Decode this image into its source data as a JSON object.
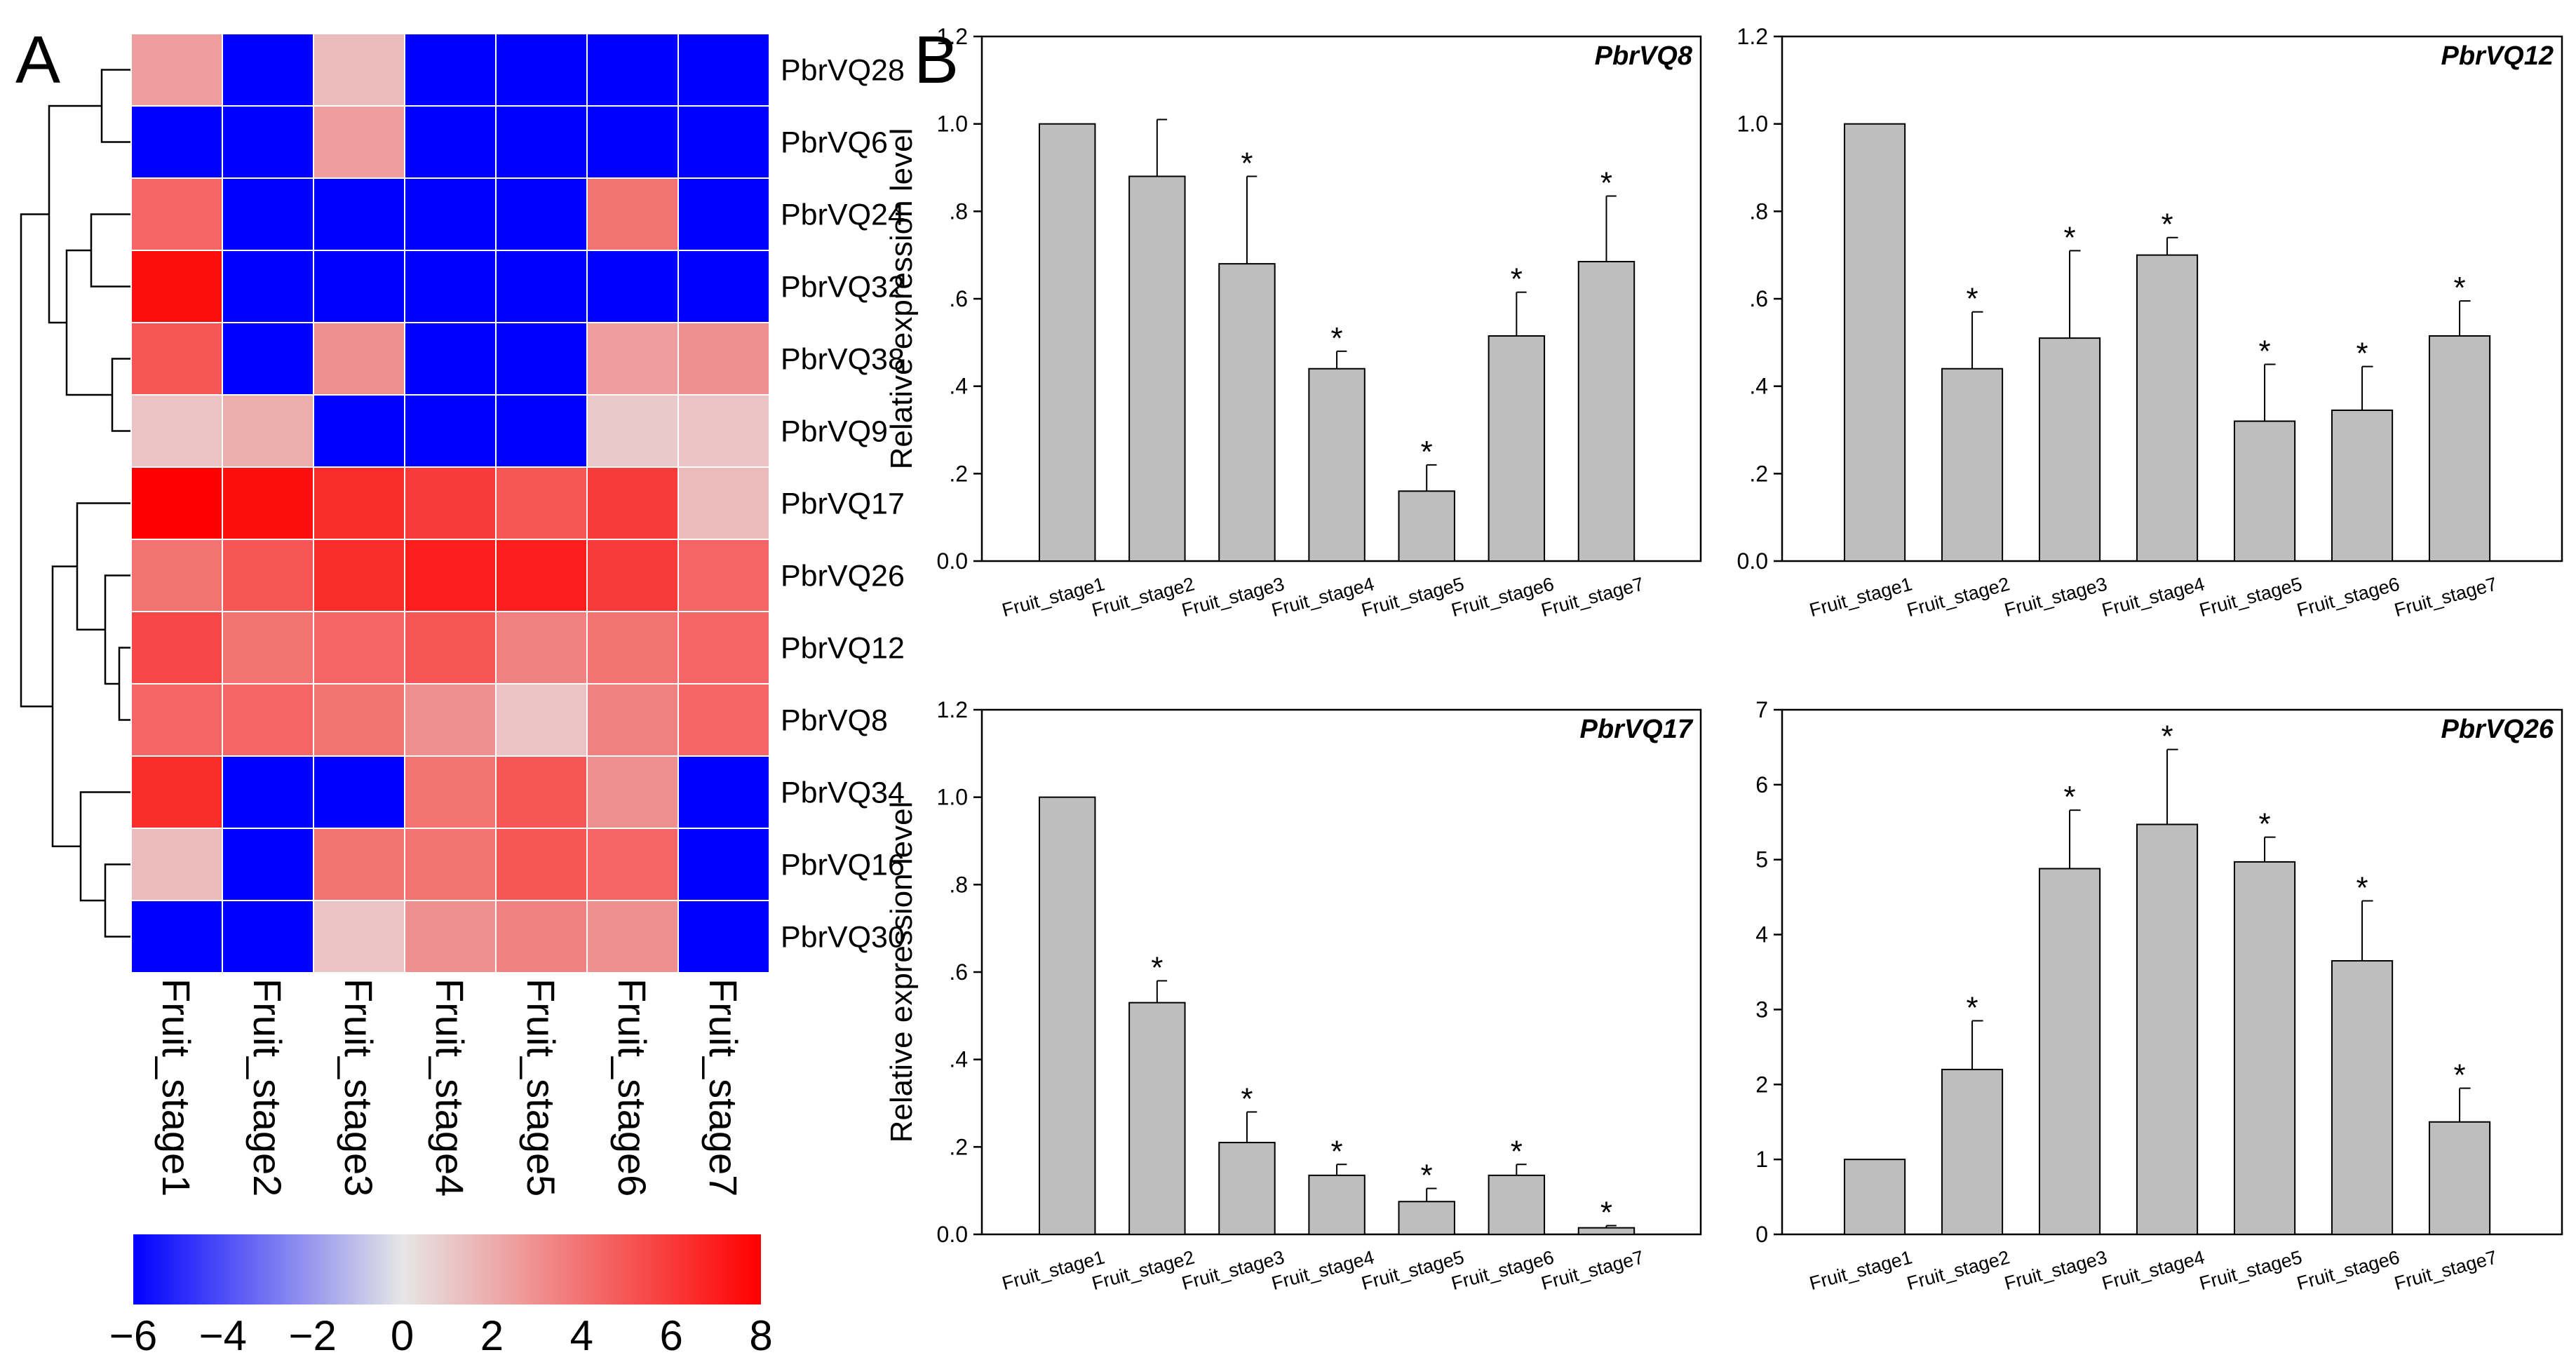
{
  "panel_labels": {
    "a": "A",
    "b": "B"
  },
  "heatmap": {
    "genes": [
      "PbrVQ28",
      "PbrVQ6",
      "PbrVQ24",
      "PbrVQ32",
      "PbrVQ38",
      "PbrVQ9",
      "PbrVQ17",
      "PbrVQ26",
      "PbrVQ12",
      "PbrVQ8",
      "PbrVQ34",
      "PbrVQ16",
      "PbrVQ30"
    ],
    "stages": [
      "Fruit_stage1",
      "Fruit_stage2",
      "Fruit_stage3",
      "Fruit_stage4",
      "Fruit_stage5",
      "Fruit_stage6",
      "Fruit_stage7"
    ],
    "values": [
      [
        2.5,
        -6,
        1.5,
        -6,
        -6,
        -6,
        -6
      ],
      [
        -6,
        -6,
        2.5,
        -6,
        -6,
        -6,
        -6
      ],
      [
        4.5,
        -6,
        -6,
        -6,
        -6,
        4,
        -6
      ],
      [
        7.5,
        -6,
        -6,
        -6,
        -6,
        -6,
        -6
      ],
      [
        5,
        -6,
        3,
        -6,
        -6,
        2.5,
        3
      ],
      [
        1.2,
        2,
        -6,
        -6,
        -6,
        1,
        1.2
      ],
      [
        8,
        7.5,
        6.5,
        6,
        5,
        6,
        1.5
      ],
      [
        4,
        5,
        6.5,
        7,
        7,
        6,
        4.5
      ],
      [
        5.5,
        4,
        4.5,
        5,
        3.5,
        4,
        4.5
      ],
      [
        4.5,
        4.5,
        4,
        3,
        1.2,
        3.5,
        4.5
      ],
      [
        6.5,
        -6,
        -6,
        4,
        5,
        3,
        -6
      ],
      [
        1.5,
        -6,
        4,
        4,
        5,
        4.5,
        -6
      ],
      [
        -6,
        -6,
        1.2,
        3,
        3.5,
        3,
        -6
      ]
    ],
    "colorbar": {
      "min": -6,
      "max": 8,
      "ticks": [
        "−6",
        "−4",
        "−2",
        "0",
        "2",
        "4",
        "6",
        "8"
      ],
      "low_color": "#0000ff",
      "mid_color": "#e6e6e6",
      "high_color": "#ff0000"
    }
  },
  "chart_data": [
    {
      "type": "bar",
      "title": "PbrVQ8",
      "categories": [
        "Fruit_stage1",
        "Fruit_stage2",
        "Fruit_stage3",
        "Fruit_stage4",
        "Fruit_stage5",
        "Fruit_stage6",
        "Fruit_stage7"
      ],
      "values": [
        1.0,
        0.88,
        0.68,
        0.44,
        0.16,
        0.515,
        0.685
      ],
      "errors": [
        0,
        0.13,
        0.2,
        0.04,
        0.06,
        0.1,
        0.15
      ],
      "significant": [
        false,
        false,
        true,
        true,
        true,
        true,
        true
      ],
      "ylabel": "Relative expression level",
      "ylim": [
        0,
        1.2
      ],
      "yticks": [
        0,
        0.2,
        0.4,
        0.6,
        0.8,
        1.0,
        1.2
      ],
      "ytick_labels": [
        "0.0",
        ".2",
        ".4",
        ".6",
        ".8",
        "1.0",
        "1.2"
      ],
      "bar_color": "#bebebe"
    },
    {
      "type": "bar",
      "title": "PbrVQ12",
      "categories": [
        "Fruit_stage1",
        "Fruit_stage2",
        "Fruit_stage3",
        "Fruit_stage4",
        "Fruit_stage5",
        "Fruit_stage6",
        "Fruit_stage7"
      ],
      "values": [
        1.0,
        0.44,
        0.51,
        0.7,
        0.32,
        0.345,
        0.515
      ],
      "errors": [
        0,
        0.13,
        0.2,
        0.04,
        0.13,
        0.1,
        0.08
      ],
      "significant": [
        false,
        true,
        true,
        true,
        true,
        true,
        true
      ],
      "ylabel": "",
      "ylim": [
        0,
        1.2
      ],
      "yticks": [
        0,
        0.2,
        0.4,
        0.6,
        0.8,
        1.0,
        1.2
      ],
      "ytick_labels": [
        "0.0",
        ".2",
        ".4",
        ".6",
        ".8",
        "1.0",
        "1.2"
      ],
      "bar_color": "#bebebe"
    },
    {
      "type": "bar",
      "title": "PbrVQ17",
      "categories": [
        "Fruit_stage1",
        "Fruit_stage2",
        "Fruit_stage3",
        "Fruit_stage4",
        "Fruit_stage5",
        "Fruit_stage6",
        "Fruit_stage7"
      ],
      "values": [
        1.0,
        0.53,
        0.21,
        0.135,
        0.075,
        0.135,
        0.015
      ],
      "errors": [
        0,
        0.05,
        0.07,
        0.025,
        0.03,
        0.025,
        0.005
      ],
      "significant": [
        false,
        true,
        true,
        true,
        true,
        true,
        true
      ],
      "ylabel": "Relative expression level",
      "ylim": [
        0,
        1.2
      ],
      "yticks": [
        0,
        0.2,
        0.4,
        0.6,
        0.8,
        1.0,
        1.2
      ],
      "ytick_labels": [
        "0.0",
        ".2",
        ".4",
        ".6",
        ".8",
        "1.0",
        "1.2"
      ],
      "bar_color": "#bebebe"
    },
    {
      "type": "bar",
      "title": "PbrVQ26",
      "categories": [
        "Fruit_stage1",
        "Fruit_stage2",
        "Fruit_stage3",
        "Fruit_stage4",
        "Fruit_stage5",
        "Fruit_stage6",
        "Fruit_stage7"
      ],
      "values": [
        1.0,
        2.2,
        4.88,
        5.47,
        4.97,
        3.65,
        1.5
      ],
      "errors": [
        0,
        0.65,
        0.78,
        1.0,
        0.33,
        0.8,
        0.45
      ],
      "significant": [
        false,
        true,
        true,
        true,
        true,
        true,
        true
      ],
      "ylabel": "",
      "ylim": [
        0,
        7
      ],
      "yticks": [
        0,
        1,
        2,
        3,
        4,
        5,
        6,
        7
      ],
      "ytick_labels": [
        "0",
        "1",
        "2",
        "3",
        "4",
        "5",
        "6",
        "7"
      ],
      "bar_color": "#bebebe"
    }
  ]
}
